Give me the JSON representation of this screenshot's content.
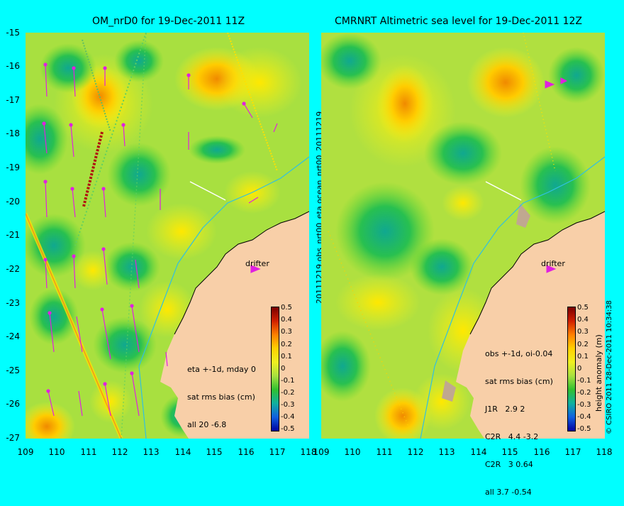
{
  "left": {
    "title": "OM_nrD0 for 19-Dec-2011 11Z",
    "info_lines": [
      "eta +-1d, mday 0",
      "sat rms bias (cm)",
      "all 20 -6.8"
    ],
    "drifter_label": "drifter"
  },
  "right": {
    "title": "CMRNRT Altimetric sea level  for 19-Dec-2011 12Z",
    "info_lines": [
      "obs +-1d, oi-0.04",
      "sat rms bias (cm)",
      "J1R   2.9 2",
      "C2R   4.4 -3.2",
      "C2R   3 0.64",
      "all 3.7 -0.54"
    ],
    "drifter_label": "drifter"
  },
  "middle_label": "20111219.obs_nrt00_eta    ocean_nrt00_20111219",
  "colorbar_title": "height anomaly (m)",
  "colorbar_ticks": [
    "0.5",
    "0.4",
    "0.3",
    "0.2",
    "0.1",
    "0",
    "-0.1",
    "-0.2",
    "-0.3",
    "-0.4",
    "-0.5"
  ],
  "copyright": "© CSIRO 2011   28-Dec-2011 10:34:38",
  "y_ticks": [
    "-15",
    "-16",
    "-17",
    "-18",
    "-19",
    "-20",
    "-21",
    "-22",
    "-23",
    "-24",
    "-25",
    "-26",
    "-27"
  ],
  "x_ticks": [
    "109",
    "110",
    "111",
    "112",
    "113",
    "114",
    "115",
    "116",
    "117",
    "118"
  ],
  "colors": {
    "background": "#00ffff",
    "land": "#f8cfa8",
    "ocean_base": "#c8f032",
    "arrow": "#e020e0"
  }
}
